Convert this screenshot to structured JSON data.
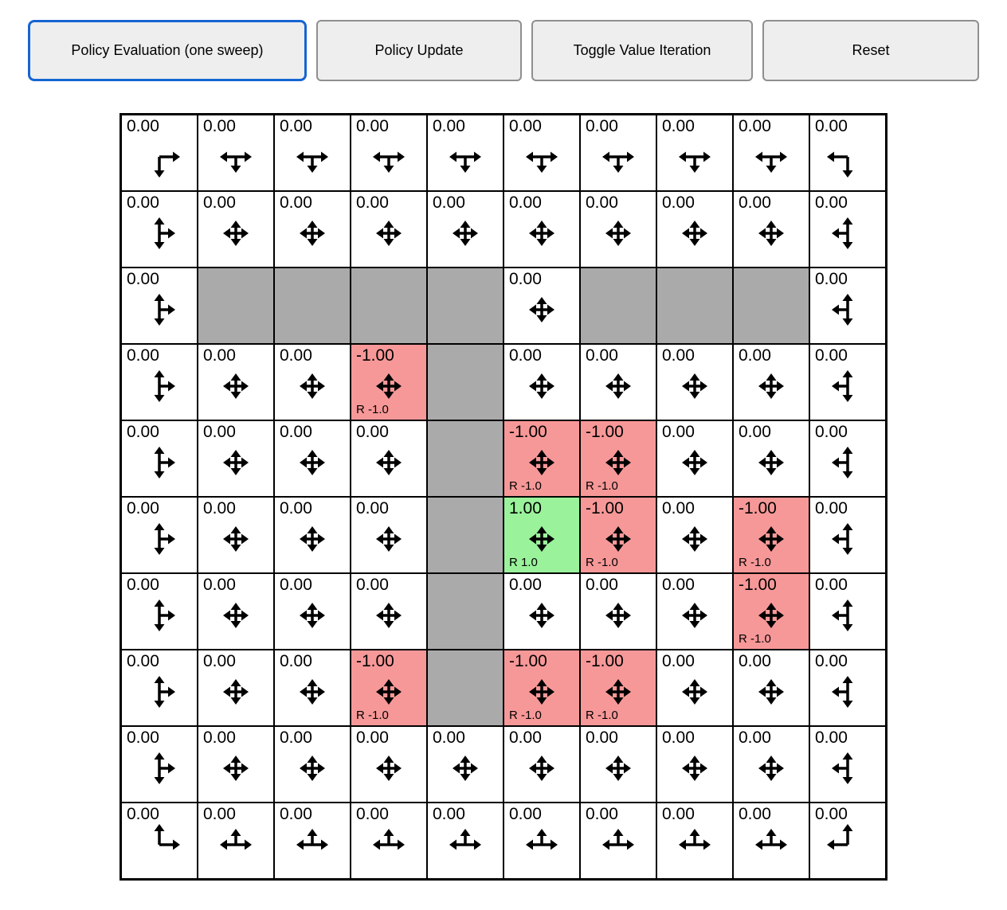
{
  "toolbar": {
    "buttons": [
      {
        "label": "Policy Evaluation (one sweep)",
        "focused": true
      },
      {
        "label": "Policy Update",
        "focused": false
      },
      {
        "label": "Toggle Value Iteration",
        "focused": false
      },
      {
        "label": "Reset",
        "focused": false
      }
    ]
  },
  "colors": {
    "wall": "#aaaaaa",
    "negative": "#f79898",
    "positive": "#9af29b",
    "cell": "#ffffff",
    "border": "#000000",
    "focus_accent": "#1565d2",
    "arrow": "#000000"
  },
  "grid": {
    "rows": 10,
    "cols": 10,
    "cells": [
      [
        {
          "v": "0.00",
          "d": "rd"
        },
        {
          "v": "0.00",
          "d": "lrd"
        },
        {
          "v": "0.00",
          "d": "lrd"
        },
        {
          "v": "0.00",
          "d": "lrd"
        },
        {
          "v": "0.00",
          "d": "lrd"
        },
        {
          "v": "0.00",
          "d": "lrd"
        },
        {
          "v": "0.00",
          "d": "lrd"
        },
        {
          "v": "0.00",
          "d": "lrd"
        },
        {
          "v": "0.00",
          "d": "lrd"
        },
        {
          "v": "0.00",
          "d": "ld"
        }
      ],
      [
        {
          "v": "0.00",
          "d": "urd"
        },
        {
          "v": "0.00",
          "d": "udlr"
        },
        {
          "v": "0.00",
          "d": "udlr"
        },
        {
          "v": "0.00",
          "d": "udlr"
        },
        {
          "v": "0.00",
          "d": "udlr"
        },
        {
          "v": "0.00",
          "d": "udlr"
        },
        {
          "v": "0.00",
          "d": "udlr"
        },
        {
          "v": "0.00",
          "d": "udlr"
        },
        {
          "v": "0.00",
          "d": "udlr"
        },
        {
          "v": "0.00",
          "d": "uld"
        }
      ],
      [
        {
          "v": "0.00",
          "d": "urd"
        },
        {
          "wall": true
        },
        {
          "wall": true
        },
        {
          "wall": true
        },
        {
          "wall": true
        },
        {
          "v": "0.00",
          "d": "udlr"
        },
        {
          "wall": true
        },
        {
          "wall": true
        },
        {
          "wall": true
        },
        {
          "v": "0.00",
          "d": "uld"
        }
      ],
      [
        {
          "v": "0.00",
          "d": "urd"
        },
        {
          "v": "0.00",
          "d": "udlr"
        },
        {
          "v": "0.00",
          "d": "udlr"
        },
        {
          "v": "-1.00",
          "d": "udlr",
          "bg": "neg",
          "rw": "R -1.0"
        },
        {
          "wall": true
        },
        {
          "v": "0.00",
          "d": "udlr"
        },
        {
          "v": "0.00",
          "d": "udlr"
        },
        {
          "v": "0.00",
          "d": "udlr"
        },
        {
          "v": "0.00",
          "d": "udlr"
        },
        {
          "v": "0.00",
          "d": "uld"
        }
      ],
      [
        {
          "v": "0.00",
          "d": "urd"
        },
        {
          "v": "0.00",
          "d": "udlr"
        },
        {
          "v": "0.00",
          "d": "udlr"
        },
        {
          "v": "0.00",
          "d": "udlr"
        },
        {
          "wall": true
        },
        {
          "v": "-1.00",
          "d": "udlr",
          "bg": "neg",
          "rw": "R -1.0"
        },
        {
          "v": "-1.00",
          "d": "udlr",
          "bg": "neg",
          "rw": "R -1.0"
        },
        {
          "v": "0.00",
          "d": "udlr"
        },
        {
          "v": "0.00",
          "d": "udlr"
        },
        {
          "v": "0.00",
          "d": "uld"
        }
      ],
      [
        {
          "v": "0.00",
          "d": "urd"
        },
        {
          "v": "0.00",
          "d": "udlr"
        },
        {
          "v": "0.00",
          "d": "udlr"
        },
        {
          "v": "0.00",
          "d": "udlr"
        },
        {
          "wall": true
        },
        {
          "v": "1.00",
          "d": "udlr",
          "bg": "pos",
          "rw": "R 1.0"
        },
        {
          "v": "-1.00",
          "d": "udlr",
          "bg": "neg",
          "rw": "R -1.0"
        },
        {
          "v": "0.00",
          "d": "udlr"
        },
        {
          "v": "-1.00",
          "d": "udlr",
          "bg": "neg",
          "rw": "R -1.0"
        },
        {
          "v": "0.00",
          "d": "uld"
        }
      ],
      [
        {
          "v": "0.00",
          "d": "urd"
        },
        {
          "v": "0.00",
          "d": "udlr"
        },
        {
          "v": "0.00",
          "d": "udlr"
        },
        {
          "v": "0.00",
          "d": "udlr"
        },
        {
          "wall": true
        },
        {
          "v": "0.00",
          "d": "udlr"
        },
        {
          "v": "0.00",
          "d": "udlr"
        },
        {
          "v": "0.00",
          "d": "udlr"
        },
        {
          "v": "-1.00",
          "d": "udlr",
          "bg": "neg",
          "rw": "R -1.0"
        },
        {
          "v": "0.00",
          "d": "uld"
        }
      ],
      [
        {
          "v": "0.00",
          "d": "urd"
        },
        {
          "v": "0.00",
          "d": "udlr"
        },
        {
          "v": "0.00",
          "d": "udlr"
        },
        {
          "v": "-1.00",
          "d": "udlr",
          "bg": "neg",
          "rw": "R -1.0"
        },
        {
          "wall": true
        },
        {
          "v": "-1.00",
          "d": "udlr",
          "bg": "neg",
          "rw": "R -1.0"
        },
        {
          "v": "-1.00",
          "d": "udlr",
          "bg": "neg",
          "rw": "R -1.0"
        },
        {
          "v": "0.00",
          "d": "udlr"
        },
        {
          "v": "0.00",
          "d": "udlr"
        },
        {
          "v": "0.00",
          "d": "uld"
        }
      ],
      [
        {
          "v": "0.00",
          "d": "urd"
        },
        {
          "v": "0.00",
          "d": "udlr"
        },
        {
          "v": "0.00",
          "d": "udlr"
        },
        {
          "v": "0.00",
          "d": "udlr"
        },
        {
          "v": "0.00",
          "d": "udlr"
        },
        {
          "v": "0.00",
          "d": "udlr"
        },
        {
          "v": "0.00",
          "d": "udlr"
        },
        {
          "v": "0.00",
          "d": "udlr"
        },
        {
          "v": "0.00",
          "d": "udlr"
        },
        {
          "v": "0.00",
          "d": "uld"
        }
      ],
      [
        {
          "v": "0.00",
          "d": "ur"
        },
        {
          "v": "0.00",
          "d": "ulr"
        },
        {
          "v": "0.00",
          "d": "ulr"
        },
        {
          "v": "0.00",
          "d": "ulr"
        },
        {
          "v": "0.00",
          "d": "ulr"
        },
        {
          "v": "0.00",
          "d": "ulr"
        },
        {
          "v": "0.00",
          "d": "ulr"
        },
        {
          "v": "0.00",
          "d": "ulr"
        },
        {
          "v": "0.00",
          "d": "ulr"
        },
        {
          "v": "0.00",
          "d": "ul"
        }
      ]
    ]
  }
}
